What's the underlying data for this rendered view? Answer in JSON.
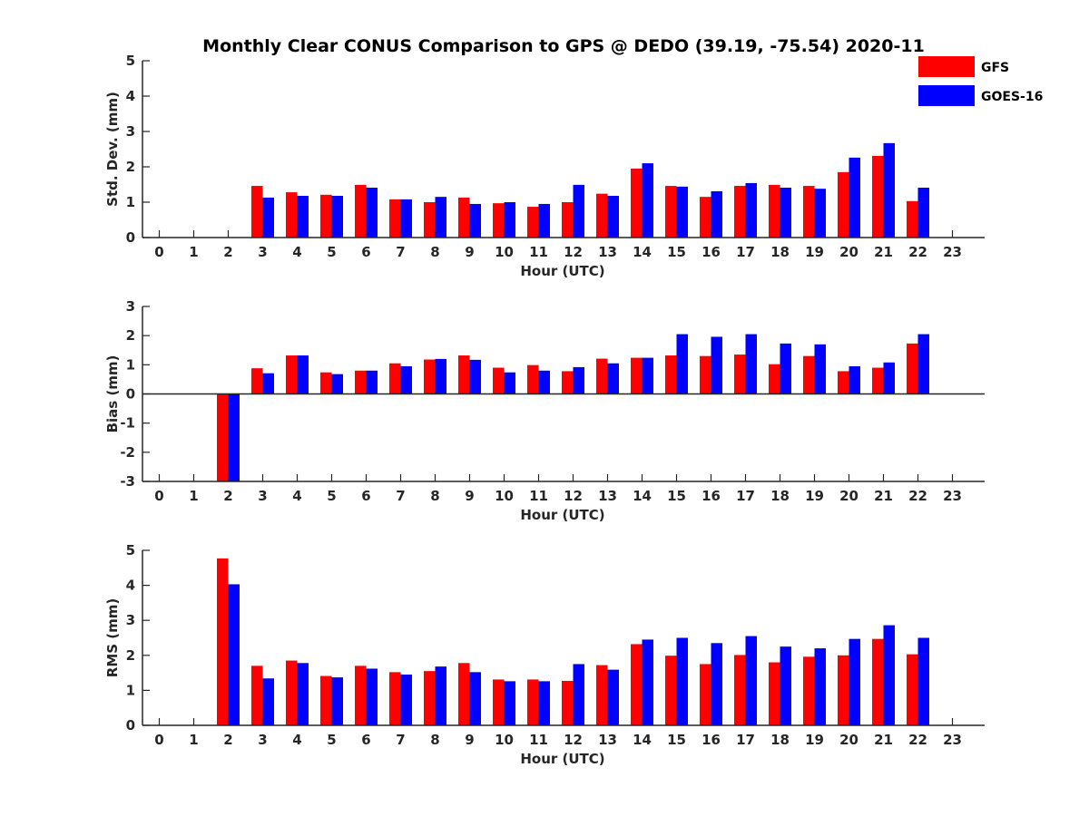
{
  "chart_data": [
    {
      "type": "bar",
      "title": "Monthly Clear CONUS Comparison to GPS @ DEDO (39.19, -75.54) 2020-11",
      "xlabel": "Hour (UTC)",
      "ylabel": "Std. Dev. (mm)",
      "ylim": [
        0,
        5
      ],
      "yticks": [
        0,
        1,
        2,
        3,
        4,
        5
      ],
      "categories": [
        "0",
        "1",
        "2",
        "3",
        "4",
        "5",
        "6",
        "7",
        "8",
        "9",
        "10",
        "11",
        "12",
        "13",
        "14",
        "15",
        "16",
        "17",
        "18",
        "19",
        "20",
        "21",
        "22",
        "23"
      ],
      "series": [
        {
          "name": "GFS",
          "color": "#ff0000",
          "values": [
            null,
            null,
            null,
            1.46,
            1.28,
            1.21,
            1.49,
            1.08,
            1.0,
            1.13,
            0.97,
            0.87,
            1.0,
            1.24,
            1.95,
            1.46,
            1.15,
            1.46,
            1.49,
            1.46,
            1.85,
            2.31,
            1.03,
            null
          ]
        },
        {
          "name": "GOES-16",
          "color": "#0000ff",
          "values": [
            null,
            null,
            null,
            1.13,
            1.18,
            1.18,
            1.41,
            1.08,
            1.15,
            0.95,
            1.0,
            0.95,
            1.49,
            1.18,
            2.1,
            1.44,
            1.31,
            1.54,
            1.41,
            1.38,
            2.26,
            2.67,
            1.41,
            null
          ]
        }
      ],
      "legend": "top-right",
      "grid": false
    },
    {
      "type": "bar",
      "xlabel": "Hour (UTC)",
      "ylabel": "Bias (mm)",
      "ylim": [
        -3,
        3
      ],
      "yticks": [
        -3,
        -2,
        -1,
        0,
        1,
        2,
        3
      ],
      "categories": [
        "0",
        "1",
        "2",
        "3",
        "4",
        "5",
        "6",
        "7",
        "8",
        "9",
        "10",
        "11",
        "12",
        "13",
        "14",
        "15",
        "16",
        "17",
        "18",
        "19",
        "20",
        "21",
        "22",
        "23"
      ],
      "series": [
        {
          "name": "GFS",
          "color": "#ff0000",
          "values": [
            null,
            null,
            -3.0,
            0.88,
            1.32,
            0.74,
            0.8,
            1.05,
            1.18,
            1.32,
            0.9,
            0.99,
            0.78,
            1.21,
            1.24,
            1.32,
            1.3,
            1.35,
            1.02,
            1.3,
            0.78,
            0.9,
            1.73,
            null
          ]
        },
        {
          "name": "GOES-16",
          "color": "#0000ff",
          "values": [
            null,
            null,
            -3.0,
            0.71,
            1.32,
            0.68,
            0.8,
            0.95,
            1.2,
            1.17,
            0.74,
            0.8,
            0.92,
            1.05,
            1.24,
            2.05,
            1.96,
            2.05,
            1.73,
            1.7,
            0.95,
            1.08,
            2.05,
            null
          ]
        }
      ],
      "grid": false
    },
    {
      "type": "bar",
      "xlabel": "Hour (UTC)",
      "ylabel": "RMS (mm)",
      "ylim": [
        0,
        5
      ],
      "yticks": [
        0,
        1,
        2,
        3,
        4,
        5
      ],
      "categories": [
        "0",
        "1",
        "2",
        "3",
        "4",
        "5",
        "6",
        "7",
        "8",
        "9",
        "10",
        "11",
        "12",
        "13",
        "14",
        "15",
        "16",
        "17",
        "18",
        "19",
        "20",
        "21",
        "22",
        "23"
      ],
      "series": [
        {
          "name": "GFS",
          "color": "#ff0000",
          "values": [
            null,
            null,
            4.77,
            1.7,
            1.85,
            1.41,
            1.7,
            1.52,
            1.55,
            1.78,
            1.31,
            1.31,
            1.27,
            1.72,
            2.32,
            1.99,
            1.75,
            2.01,
            1.8,
            1.96,
            2.0,
            2.47,
            2.03,
            null
          ]
        },
        {
          "name": "GOES-16",
          "color": "#0000ff",
          "values": [
            null,
            null,
            4.03,
            1.34,
            1.78,
            1.37,
            1.62,
            1.45,
            1.68,
            1.52,
            1.26,
            1.26,
            1.75,
            1.59,
            2.45,
            2.5,
            2.35,
            2.55,
            2.25,
            2.2,
            2.47,
            2.86,
            2.5,
            null
          ]
        }
      ],
      "grid": false
    }
  ]
}
